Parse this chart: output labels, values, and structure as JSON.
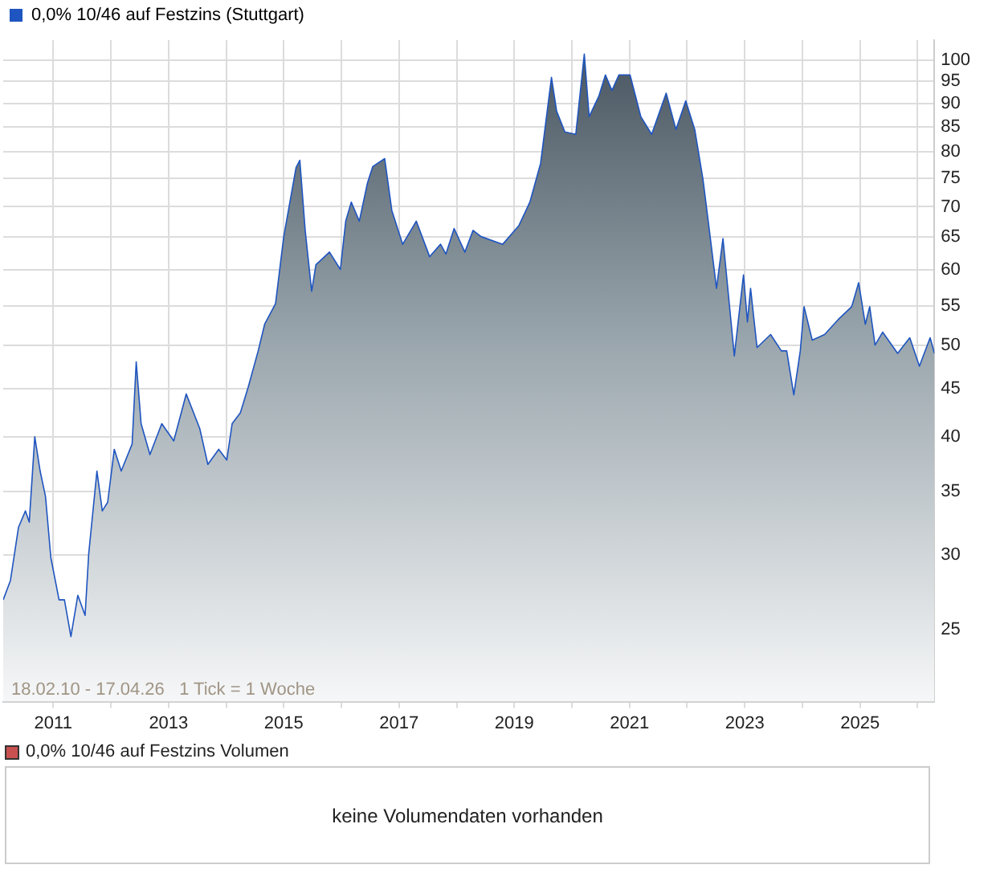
{
  "chart_data": [
    {
      "type": "area",
      "log": "y",
      "grid": true,
      "legend": "top left",
      "marker": "none",
      "line_style": "solid",
      "series": [
        {
          "name": "0,0% 10/46 auf Festzins (Stuttgart)",
          "color": "#1f55c0",
          "x": [
            "2010-02-18",
            "2010-04-05",
            "2010-05-26",
            "2010-07-09",
            "2010-08-02",
            "2010-09-06",
            "2010-10-10",
            "2010-11-13",
            "2010-12-17",
            "2011-02-07",
            "2011-03-13",
            "2011-04-23",
            "2011-06-06",
            "2011-07-22",
            "2011-08-14",
            "2011-10-05",
            "2011-11-08",
            "2011-12-12",
            "2012-01-23",
            "2012-03-07",
            "2012-05-15",
            "2012-06-10",
            "2012-07-11",
            "2012-09-05",
            "2012-11-19",
            "2013-02-03",
            "2013-04-23",
            "2013-07-18",
            "2013-09-07",
            "2013-11-15",
            "2014-01-05",
            "2014-02-08",
            "2014-04-01",
            "2014-05-22",
            "2014-07-23",
            "2014-09-02",
            "2014-11-10",
            "2015-01-01",
            "2015-03-20",
            "2015-04-13",
            "2015-05-17",
            "2015-06-27",
            "2015-07-24",
            "2015-10-18",
            "2015-12-26",
            "2016-01-29",
            "2016-03-04",
            "2016-04-24",
            "2016-06-14",
            "2016-07-18",
            "2016-10-02",
            "2016-11-16",
            "2017-01-24",
            "2017-04-20",
            "2017-07-14",
            "2017-09-21",
            "2017-10-25",
            "2017-12-16",
            "2018-02-22",
            "2018-04-15",
            "2018-06-05",
            "2018-10-20",
            "2019-01-31",
            "2019-04-10",
            "2019-06-17",
            "2019-08-25",
            "2019-09-27",
            "2019-11-18",
            "2020-01-26",
            "2020-03-20",
            "2020-04-20",
            "2020-06-21",
            "2020-08-01",
            "2020-09-11",
            "2020-10-26",
            "2021-01-04",
            "2021-03-13",
            "2021-05-21",
            "2021-08-21",
            "2021-10-22",
            "2021-12-23",
            "2022-02-18",
            "2022-04-11",
            "2022-05-16",
            "2022-07-06",
            "2022-08-16",
            "2022-10-27",
            "2022-12-24",
            "2023-01-18",
            "2023-02-07",
            "2023-03-20",
            "2023-06-14",
            "2023-08-21",
            "2023-09-24",
            "2023-11-08",
            "2023-12-19",
            "2024-01-12",
            "2024-03-04",
            "2024-05-21",
            "2024-08-15",
            "2024-11-09",
            "2024-12-23",
            "2025-02-03",
            "2025-03-03",
            "2025-04-06",
            "2025-05-24",
            "2025-08-27",
            "2025-11-12",
            "2026-01-12",
            "2026-03-21",
            "2026-04-17"
          ],
          "values": [
            26.9,
            28.2,
            32.1,
            33.4,
            32.5,
            40.0,
            36.8,
            34.6,
            29.8,
            26.9,
            26.9,
            24.6,
            27.2,
            25.9,
            30.1,
            36.8,
            33.4,
            34.1,
            38.8,
            36.8,
            39.3,
            48.0,
            41.3,
            38.3,
            41.3,
            39.6,
            44.4,
            40.8,
            37.4,
            38.8,
            37.8,
            41.3,
            42.4,
            45.2,
            49.3,
            52.6,
            55.3,
            65.1,
            77.0,
            78.4,
            66.1,
            57.0,
            60.8,
            62.7,
            60.1,
            67.6,
            70.8,
            67.6,
            74.1,
            77.2,
            78.7,
            69.4,
            63.9,
            67.6,
            62.0,
            63.9,
            62.4,
            66.4,
            62.7,
            66.1,
            65.1,
            63.9,
            66.9,
            70.8,
            77.8,
            95.9,
            88.3,
            84.0,
            83.5,
            101.5,
            87.2,
            91.7,
            96.5,
            92.9,
            96.5,
            96.5,
            87.2,
            83.5,
            92.3,
            84.5,
            90.6,
            84.5,
            74.9,
            67.3,
            57.4,
            64.8,
            48.7,
            59.3,
            52.9,
            57.4,
            49.7,
            51.3,
            49.3,
            49.3,
            44.3,
            49.3,
            54.9,
            50.6,
            51.3,
            53.2,
            54.9,
            58.2,
            52.6,
            54.9,
            50.0,
            51.6,
            49.0,
            50.9,
            47.5,
            50.9,
            49.0
          ]
        }
      ],
      "xlim": [
        "2010-02-18",
        "2026-04-17"
      ],
      "xticks": [
        {
          "value": "2011-01-01",
          "label": "2011"
        },
        {
          "value": "2012-01-01",
          "label": null
        },
        {
          "value": "2013-01-01",
          "label": "2013"
        },
        {
          "value": "2014-01-01",
          "label": null
        },
        {
          "value": "2015-01-01",
          "label": "2015"
        },
        {
          "value": "2016-01-01",
          "label": null
        },
        {
          "value": "2017-01-01",
          "label": "2017"
        },
        {
          "value": "2018-01-01",
          "label": null
        },
        {
          "value": "2019-01-01",
          "label": "2019"
        },
        {
          "value": "2020-01-01",
          "label": null
        },
        {
          "value": "2021-01-01",
          "label": "2021"
        },
        {
          "value": "2022-01-01",
          "label": null
        },
        {
          "value": "2023-01-01",
          "label": "2023"
        },
        {
          "value": "2024-01-01",
          "label": null
        },
        {
          "value": "2025-01-01",
          "label": "2025"
        },
        {
          "value": "2026-01-01",
          "label": null
        }
      ],
      "ylim": [
        21,
        105
      ],
      "yticks": [
        25,
        30,
        35,
        40,
        45,
        50,
        55,
        60,
        65,
        70,
        75,
        80,
        85,
        90,
        95,
        100
      ],
      "annotations": [
        "18.02.10 - 17.04.26   1 Tick = 1 Woche"
      ]
    },
    {
      "type": "other",
      "title": "0,0% 10/46 auf Festzins Volumen",
      "annotations": [
        "keine Volumendaten vorhanden"
      ]
    }
  ]
}
